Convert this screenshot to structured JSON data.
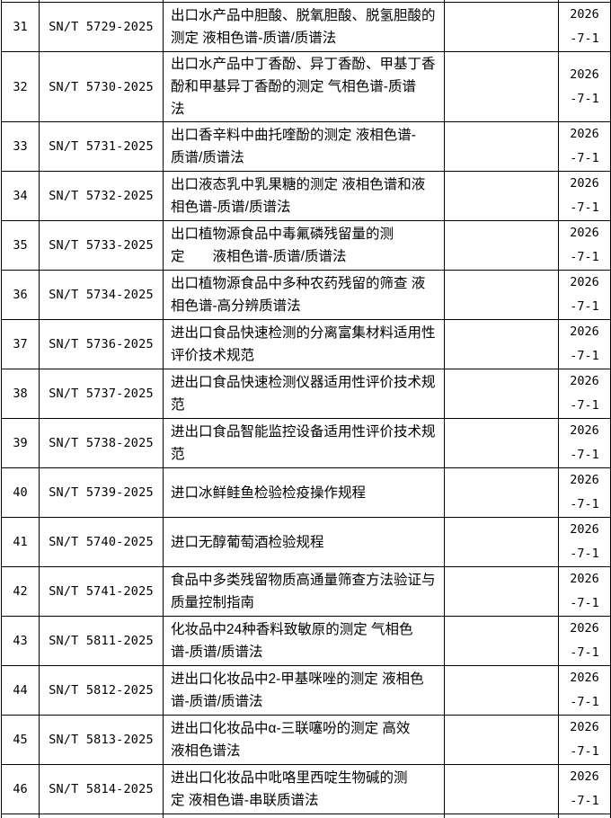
{
  "table": {
    "implementation_date_lines": [
      "2026",
      "-7-1"
    ],
    "rows": [
      {
        "no": "31",
        "code": "SN/T 5729-2025",
        "name_lines": [
          "出口水产品中胆酸、脱氧胆酸、脱氢胆酸的",
          "测定 液相色谱-质谱/质谱法"
        ],
        "remark": "",
        "date_lines": [
          "2026",
          "-7-1"
        ]
      },
      {
        "no": "32",
        "code": "SN/T 5730-2025",
        "name_lines": [
          "出口水产品中丁香酚、异丁香酚、甲基丁香",
          "酚和甲基异丁香酚的测定 气相色谱-质谱",
          "法"
        ],
        "remark": "",
        "date_lines": [
          "2026",
          "-7-1"
        ]
      },
      {
        "no": "33",
        "code": "SN/T 5731-2025",
        "name_lines": [
          "出口香辛料中曲托喹酚的测定 液相色谱-",
          "质谱/质谱法"
        ],
        "remark": "",
        "date_lines": [
          "2026",
          "-7-1"
        ]
      },
      {
        "no": "34",
        "code": "SN/T 5732-2025",
        "name_lines": [
          "出口液态乳中乳果糖的测定 液相色谱和液",
          "相色谱-质谱/质谱法"
        ],
        "remark": "",
        "date_lines": [
          "2026",
          "-7-1"
        ]
      },
      {
        "no": "35",
        "code": "SN/T 5733-2025",
        "name_lines": [
          "出口植物源食品中毒氟磷残留量的测",
          "定　　液相色谱-质谱/质谱法"
        ],
        "remark": "",
        "date_lines": [
          "2026",
          "-7-1"
        ]
      },
      {
        "no": "36",
        "code": "SN/T 5734-2025",
        "name_lines": [
          "出口植物源食品中多种农药残留的筛查 液",
          "相色谱-高分辨质谱法"
        ],
        "remark": "",
        "date_lines": [
          "2026",
          "-7-1"
        ]
      },
      {
        "no": "37",
        "code": "SN/T 5736-2025",
        "name_lines": [
          "进出口食品快速检测的分离富集材料适用性",
          "评价技术规范"
        ],
        "remark": "",
        "date_lines": [
          "2026",
          "-7-1"
        ]
      },
      {
        "no": "38",
        "code": "SN/T 5737-2025",
        "name_lines": [
          "进出口食品快速检测仪器适用性评价技术规",
          "范"
        ],
        "remark": "",
        "date_lines": [
          "2026",
          "-7-1"
        ]
      },
      {
        "no": "39",
        "code": "SN/T 5738-2025",
        "name_lines": [
          "进出口食品智能监控设备适用性评价技术规",
          "范"
        ],
        "remark": "",
        "date_lines": [
          "2026",
          "-7-1"
        ]
      },
      {
        "no": "40",
        "code": "SN/T 5739-2025",
        "name_lines": [
          "进口冰鲜鲑鱼检验检疫操作规程"
        ],
        "remark": "",
        "date_lines": [
          "2026",
          "-7-1"
        ]
      },
      {
        "no": "41",
        "code": "SN/T 5740-2025",
        "name_lines": [
          "进口无醇葡萄酒检验规程"
        ],
        "remark": "",
        "date_lines": [
          "2026",
          "-7-1"
        ]
      },
      {
        "no": "42",
        "code": "SN/T 5741-2025",
        "name_lines": [
          "食品中多类残留物质高通量筛查方法验证与",
          "质量控制指南"
        ],
        "remark": "",
        "date_lines": [
          "2026",
          "-7-1"
        ]
      },
      {
        "no": "43",
        "code": "SN/T 5811-2025",
        "name_lines": [
          "化妆品中24种香料致敏原的测定 气相色",
          "谱-质谱/质谱法"
        ],
        "remark": "",
        "date_lines": [
          "2026",
          "-7-1"
        ]
      },
      {
        "no": "44",
        "code": "SN/T 5812-2025",
        "name_lines": [
          "进出口化妆品中2-甲基咪唑的测定 液相色",
          "谱-质谱/质谱法"
        ],
        "remark": "",
        "date_lines": [
          "2026",
          "-7-1"
        ]
      },
      {
        "no": "45",
        "code": "SN/T 5813-2025",
        "name_lines": [
          "进出口化妆品中α-三联噻吩的测定 高效",
          "液相色谱法"
        ],
        "remark": "",
        "date_lines": [
          "2026",
          "-7-1"
        ]
      },
      {
        "no": "46",
        "code": "SN/T 5814-2025",
        "name_lines": [
          "进出口化妆品中吡咯里西啶生物碱的测",
          "定 液相色谱-串联质谱法"
        ],
        "remark": "",
        "date_lines": [
          "2026",
          "-7-1"
        ]
      }
    ]
  }
}
